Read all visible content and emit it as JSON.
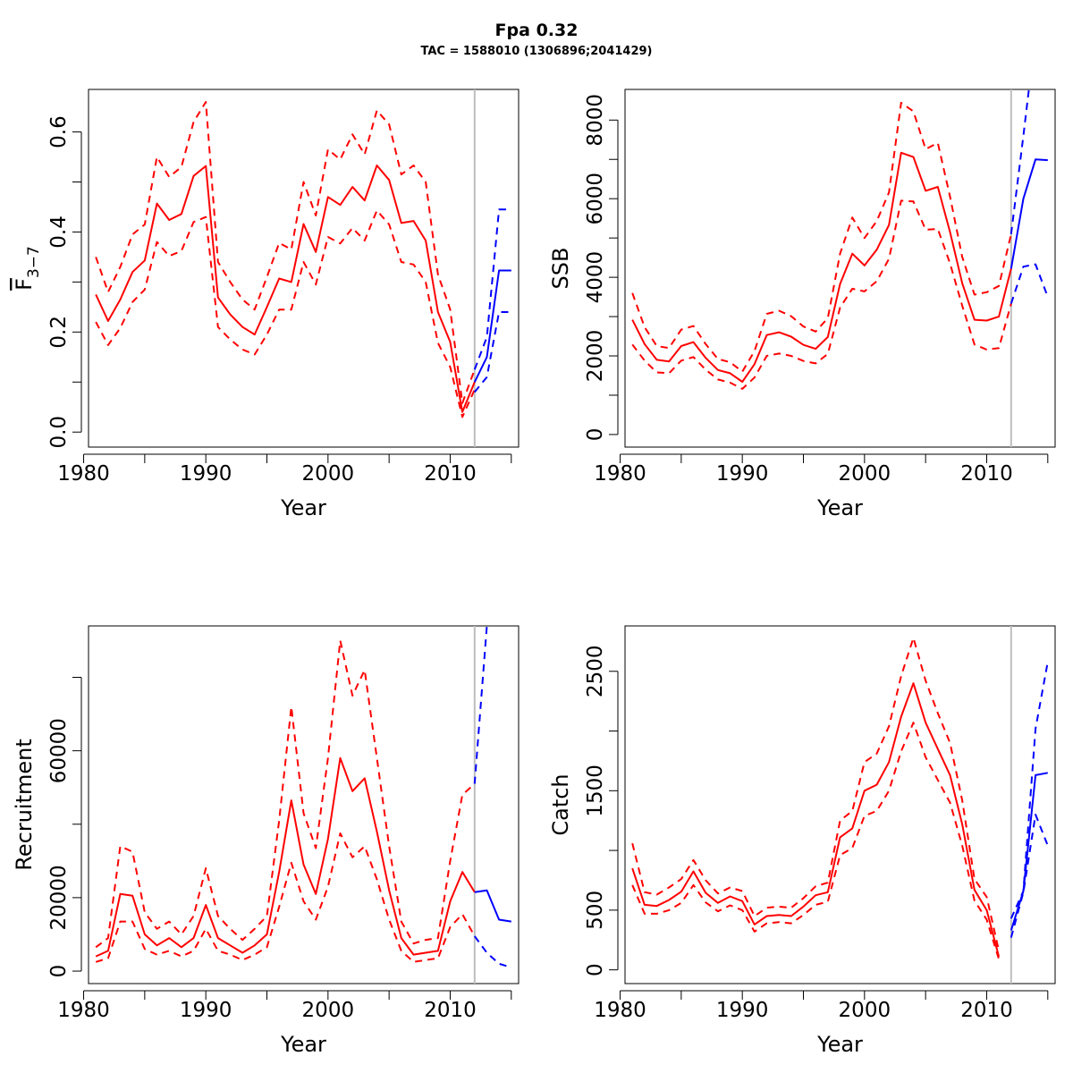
{
  "title": "Fpa 0.32",
  "subtitle": "TAC = 1588010 (1306896;2041429)",
  "colors": {
    "historic": "#ff0000",
    "forecast": "#0000ff",
    "divider": "#bebebe",
    "frame": "#000000"
  },
  "chart_data": [
    {
      "type": "line",
      "id": "f",
      "ylabel_main": "F",
      "ylabel_sub": "3−7",
      "xlabel": "Year",
      "xlim": [
        1980.4,
        2015.6
      ],
      "ylim": [
        -0.03,
        0.685
      ],
      "xticks": [
        1980,
        1985,
        1990,
        1995,
        2000,
        2005,
        2010,
        2015
      ],
      "xtick_labels": [
        "1980",
        "",
        "1990",
        "",
        "2000",
        "",
        "2010",
        ""
      ],
      "yticks": [
        0,
        0.1,
        0.2,
        0.3,
        0.4,
        0.5,
        0.6
      ],
      "ytick_labels": [
        "0.0",
        "",
        "0.2",
        "",
        "0.4",
        "",
        "0.6"
      ],
      "divider_x": 2012,
      "historic": {
        "x": [
          1981,
          1982,
          1983,
          1984,
          1985,
          1986,
          1987,
          1988,
          1989,
          1990,
          1991,
          1992,
          1993,
          1994,
          1995,
          1996,
          1997,
          1998,
          1999,
          2000,
          2001,
          2002,
          2003,
          2004,
          2005,
          2006,
          2007,
          2008,
          2009,
          2010,
          2011,
          2012
        ],
        "mean": [
          0.275,
          0.222,
          0.265,
          0.32,
          0.343,
          0.457,
          0.424,
          0.436,
          0.512,
          0.532,
          0.269,
          0.235,
          0.21,
          0.195,
          0.25,
          0.307,
          0.3,
          0.416,
          0.36,
          0.47,
          0.454,
          0.49,
          0.463,
          0.533,
          0.504,
          0.418,
          0.422,
          0.383,
          0.24,
          0.18,
          0.04,
          0.1
        ],
        "upper": [
          0.35,
          0.28,
          0.33,
          0.395,
          0.415,
          0.55,
          0.51,
          0.53,
          0.62,
          0.66,
          0.34,
          0.3,
          0.265,
          0.245,
          0.31,
          0.378,
          0.365,
          0.5,
          0.433,
          0.565,
          0.545,
          0.595,
          0.555,
          0.643,
          0.615,
          0.515,
          0.533,
          0.5,
          0.315,
          0.245,
          0.058,
          0.125
        ],
        "lower": [
          0.22,
          0.174,
          0.208,
          0.26,
          0.285,
          0.38,
          0.352,
          0.362,
          0.42,
          0.43,
          0.21,
          0.185,
          0.165,
          0.155,
          0.195,
          0.245,
          0.245,
          0.34,
          0.295,
          0.39,
          0.377,
          0.408,
          0.383,
          0.443,
          0.415,
          0.34,
          0.335,
          0.3,
          0.178,
          0.13,
          0.03,
          0.085
        ]
      },
      "forecast": {
        "x": [
          2012,
          2013,
          2014,
          2015
        ],
        "mean": [
          0.1,
          0.15,
          0.323,
          0.323
        ],
        "upper": [
          0.125,
          0.19,
          0.445,
          0.445
        ],
        "lower": [
          0.08,
          0.11,
          0.24,
          0.24
        ]
      }
    },
    {
      "type": "line",
      "id": "ssb",
      "ylabel_main": "SSB",
      "ylabel_sub": "",
      "xlabel": "Year",
      "xlim": [
        1980.4,
        2015.6
      ],
      "ylim": [
        -320,
        8780
      ],
      "xticks": [
        1980,
        1985,
        1990,
        1995,
        2000,
        2005,
        2010,
        2015
      ],
      "xtick_labels": [
        "1980",
        "",
        "1990",
        "",
        "2000",
        "",
        "2010",
        ""
      ],
      "yticks": [
        0,
        1000,
        2000,
        3000,
        4000,
        5000,
        6000,
        7000,
        8000
      ],
      "ytick_labels": [
        "0",
        "",
        "2000",
        "",
        "4000",
        "",
        "6000",
        "",
        "8000"
      ],
      "divider_x": 2012,
      "historic": {
        "x": [
          1981,
          1982,
          1983,
          1984,
          1985,
          1986,
          1987,
          1988,
          1989,
          1990,
          1991,
          1992,
          1993,
          1994,
          1995,
          1996,
          1997,
          1998,
          1999,
          2000,
          2001,
          2002,
          2003,
          2004,
          2005,
          2006,
          2007,
          2008,
          2009,
          2010,
          2011,
          2012
        ],
        "mean": [
          2920,
          2300,
          1900,
          1860,
          2250,
          2350,
          1950,
          1640,
          1560,
          1340,
          1790,
          2530,
          2600,
          2490,
          2280,
          2180,
          2480,
          3830,
          4600,
          4300,
          4700,
          5330,
          7170,
          7060,
          6200,
          6300,
          5150,
          3850,
          2920,
          2900,
          3000,
          4220
        ],
        "upper": [
          3600,
          2730,
          2250,
          2200,
          2670,
          2760,
          2300,
          1920,
          1840,
          1600,
          2120,
          3070,
          3150,
          3010,
          2750,
          2620,
          2960,
          4600,
          5520,
          5000,
          5430,
          6160,
          8440,
          8220,
          7260,
          7420,
          6050,
          4520,
          3560,
          3620,
          3780,
          5100
        ],
        "lower": [
          2290,
          1880,
          1580,
          1560,
          1880,
          1970,
          1650,
          1400,
          1320,
          1160,
          1450,
          2000,
          2060,
          2000,
          1870,
          1810,
          2050,
          3230,
          3710,
          3640,
          3900,
          4470,
          5950,
          5930,
          5210,
          5230,
          4350,
          3280,
          2290,
          2160,
          2200,
          3330
        ]
      },
      "forecast": {
        "x": [
          2012,
          2013,
          2014,
          2015
        ],
        "mean": [
          4220,
          6000,
          7000,
          6980
        ],
        "upper": [
          5100,
          7600,
          10200,
          10500
        ],
        "lower": [
          3330,
          4270,
          4330,
          3500
        ]
      }
    },
    {
      "type": "line",
      "id": "recruitment",
      "ylabel_main": "Recruitment",
      "ylabel_sub": "",
      "xlabel": "Year",
      "xlim": [
        1980.4,
        2015.6
      ],
      "ylim": [
        -3400,
        94000
      ],
      "xticks": [
        1980,
        1985,
        1990,
        1995,
        2000,
        2005,
        2010,
        2015
      ],
      "xtick_labels": [
        "1980",
        "",
        "1990",
        "",
        "2000",
        "",
        "2010",
        ""
      ],
      "yticks": [
        0,
        20000,
        40000,
        60000,
        80000
      ],
      "ytick_labels": [
        "0",
        "20000",
        "",
        "60000",
        ""
      ],
      "divider_x": 2012,
      "historic": {
        "x": [
          1981,
          1982,
          1983,
          1984,
          1985,
          1986,
          1987,
          1988,
          1989,
          1990,
          1991,
          1992,
          1993,
          1994,
          1995,
          1996,
          1997,
          1998,
          1999,
          2000,
          2001,
          2002,
          2003,
          2004,
          2005,
          2006,
          2007,
          2008,
          2009,
          2010,
          2011,
          2012
        ],
        "mean": [
          4000,
          5500,
          21000,
          20500,
          10000,
          7000,
          9000,
          6500,
          9000,
          18000,
          9000,
          7000,
          5000,
          7000,
          10000,
          27000,
          46500,
          29000,
          21000,
          36000,
          58000,
          49000,
          52500,
          38000,
          22000,
          9000,
          4500,
          5000,
          5500,
          19000,
          27000,
          21500
        ],
        "upper": [
          6500,
          9000,
          34000,
          32500,
          16000,
          11500,
          13500,
          10000,
          15000,
          28000,
          15000,
          11500,
          8500,
          11500,
          15000,
          41000,
          72000,
          43000,
          33500,
          58000,
          90000,
          75000,
          82000,
          58000,
          34000,
          13500,
          7500,
          8500,
          9000,
          30000,
          48000,
          51000
        ],
        "lower": [
          2500,
          3500,
          13500,
          13500,
          6000,
          4500,
          5500,
          4000,
          5500,
          11500,
          5500,
          4500,
          3000,
          4500,
          6500,
          17500,
          29500,
          19000,
          14000,
          23000,
          37500,
          31000,
          34000,
          25000,
          14000,
          5500,
          2500,
          3000,
          3500,
          12000,
          15500,
          9500
        ]
      },
      "forecast": {
        "x": [
          2012,
          2013,
          2014,
          2015
        ],
        "mean": [
          21500,
          22000,
          14000,
          13500
        ],
        "upper": [
          51000,
          94000,
          150000,
          180000
        ],
        "lower": [
          9500,
          5000,
          2000,
          1000
        ]
      }
    },
    {
      "type": "line",
      "id": "catch",
      "ylabel_main": "Catch",
      "ylabel_sub": "",
      "xlabel": "Year",
      "xlim": [
        1980.4,
        2015.6
      ],
      "ylim": [
        -115,
        2880
      ],
      "xticks": [
        1980,
        1985,
        1990,
        1995,
        2000,
        2005,
        2010,
        2015
      ],
      "xtick_labels": [
        "1980",
        "",
        "1990",
        "",
        "2000",
        "",
        "2010",
        ""
      ],
      "yticks": [
        0,
        500,
        1000,
        1500,
        2000,
        2500
      ],
      "ytick_labels": [
        "0",
        "500",
        "",
        "1500",
        "",
        "2500"
      ],
      "divider_x": 2012,
      "historic": {
        "x": [
          1981,
          1982,
          1983,
          1984,
          1985,
          1986,
          1987,
          1988,
          1989,
          1990,
          1991,
          1992,
          1993,
          1994,
          1995,
          1996,
          1997,
          1998,
          1999,
          2000,
          2001,
          2002,
          2003,
          2004,
          2005,
          2006,
          2007,
          2008,
          2009,
          2010,
          2011
        ],
        "mean": [
          850,
          545,
          535,
          585,
          655,
          825,
          645,
          560,
          615,
          575,
          380,
          450,
          460,
          450,
          530,
          625,
          650,
          1110,
          1185,
          1500,
          1550,
          1740,
          2120,
          2400,
          2070,
          1850,
          1630,
          1220,
          670,
          500,
          110
        ],
        "upper": [
          1060,
          650,
          630,
          690,
          760,
          920,
          750,
          640,
          690,
          660,
          450,
          520,
          530,
          520,
          600,
          700,
          730,
          1250,
          1330,
          1740,
          1810,
          2040,
          2460,
          2780,
          2420,
          2150,
          1900,
          1420,
          760,
          610,
          160
        ],
        "lower": [
          710,
          470,
          470,
          500,
          560,
          710,
          565,
          490,
          540,
          500,
          320,
          390,
          400,
          390,
          460,
          545,
          570,
          960,
          1020,
          1290,
          1330,
          1500,
          1830,
          2070,
          1780,
          1590,
          1400,
          1040,
          580,
          420,
          90
        ]
      },
      "forecast": {
        "x": [
          2012,
          2013,
          2014,
          2015
        ],
        "mean": [
          330,
          660,
          1630,
          1650
        ],
        "upper": [
          430,
          660,
          2020,
          2580
        ],
        "lower": [
          270,
          650,
          1300,
          1040
        ]
      }
    }
  ]
}
